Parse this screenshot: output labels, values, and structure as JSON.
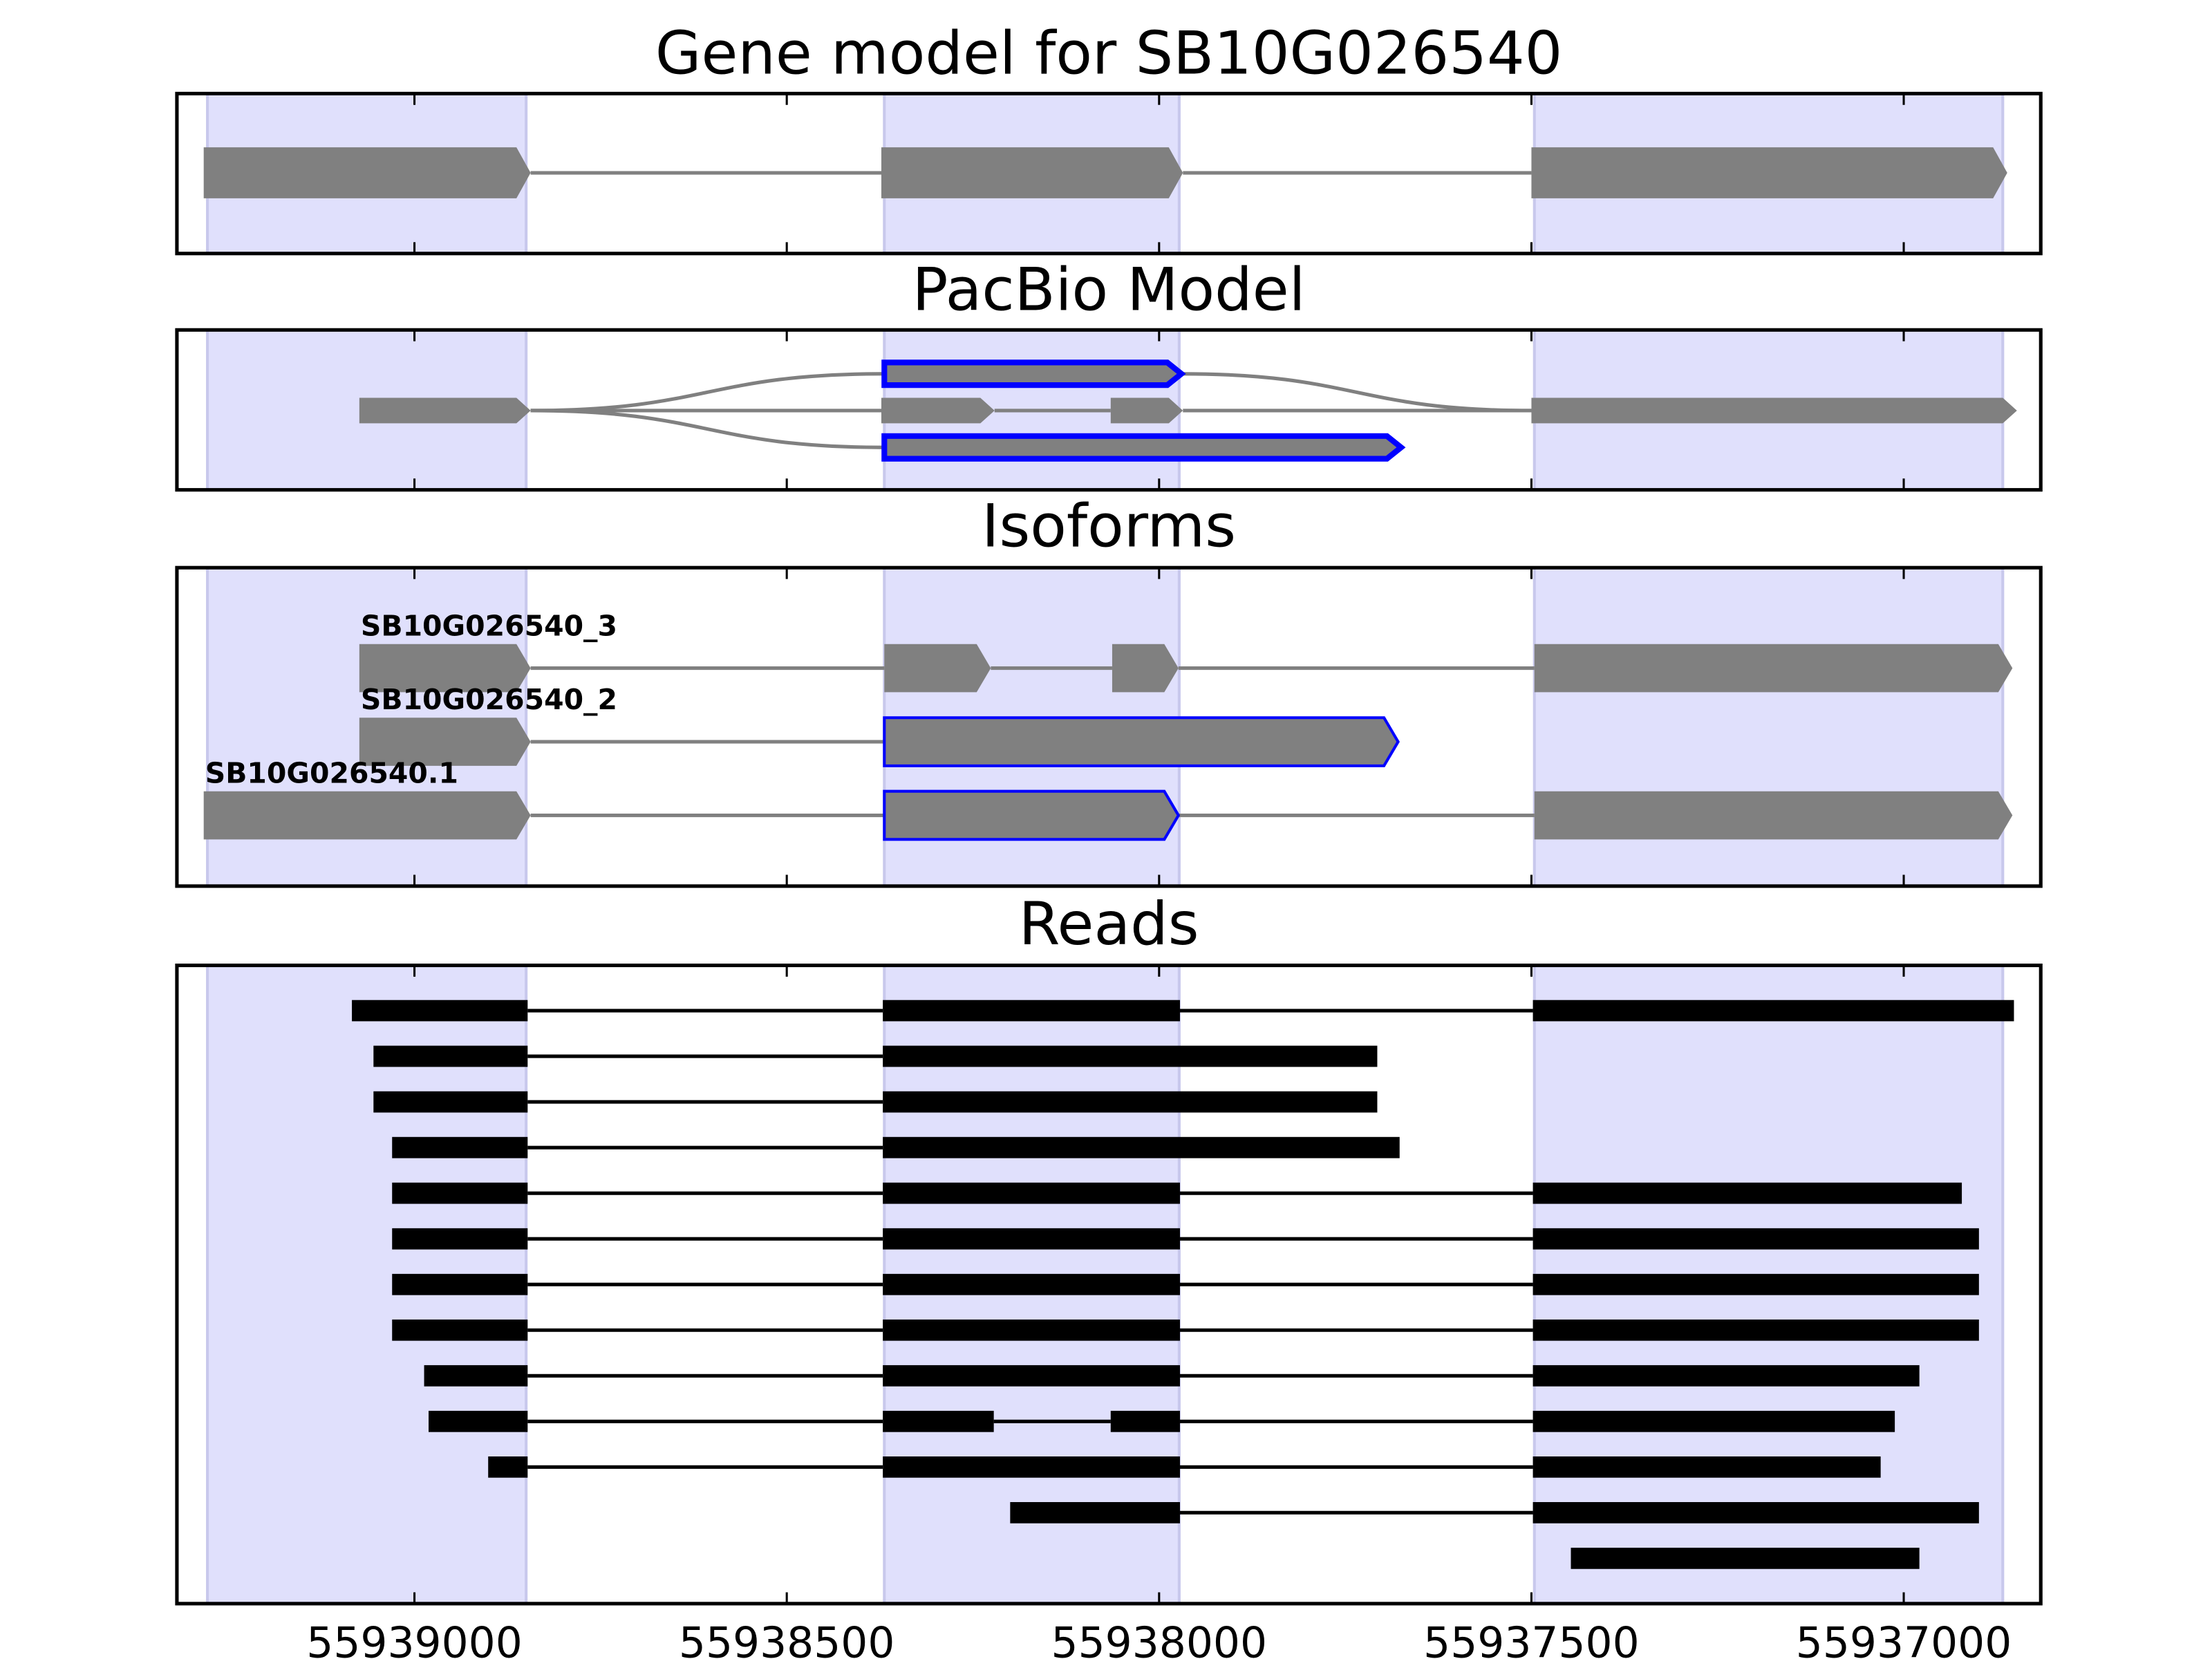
{
  "chart_data": {
    "type": "gene-tracks",
    "xlim": [
      55939319,
      55936816
    ],
    "xticks": [
      55939000,
      55938500,
      55938000,
      55937500,
      55937000
    ],
    "regions": [
      [
        55939278,
        55938850
      ],
      [
        55938369,
        55937973
      ],
      [
        55937496,
        55936867
      ]
    ],
    "panels": [
      {
        "title": "Gene model for SB10G026540",
        "style": "model",
        "rows": [
          {
            "exons": [
              [
                55939283,
                55938844
              ],
              [
                55938373,
                55937968
              ],
              [
                55937500,
                55936861
              ]
            ]
          }
        ]
      },
      {
        "title": "PacBio Model",
        "style": "model",
        "rows": [
          {
            "exons": [
              [
                55938369,
                55937970
              ]
            ],
            "outlined": [
              0
            ]
          },
          {
            "exons": [
              [
                55939074,
                55938844
              ],
              [
                55938373,
                55938221
              ],
              [
                55938065,
                55937968
              ],
              [
                55937500,
                55936848
              ]
            ]
          },
          {
            "exons": [
              [
                55938369,
                55937675
              ]
            ],
            "outlined": [
              0
            ]
          }
        ],
        "links": [
          [
            [
              1,
              0
            ],
            [
              0,
              0
            ]
          ],
          [
            [
              0,
              0
            ],
            [
              1,
              3
            ]
          ],
          [
            [
              1,
              0
            ],
            [
              2,
              0
            ]
          ]
        ]
      },
      {
        "title": "Isoforms",
        "style": "model",
        "rows": [
          {
            "name": "SB10G026540_3",
            "exons": [
              [
                55939074,
                55938844
              ],
              [
                55938369,
                55938226
              ],
              [
                55938063,
                55937974
              ],
              [
                55937496,
                55936854
              ]
            ]
          },
          {
            "name": "SB10G026540_2",
            "exons": [
              [
                55939074,
                55938844
              ],
              [
                55938369,
                55937679
              ]
            ],
            "outlined": [
              1
            ]
          },
          {
            "name": "SB10G026540.1",
            "exons": [
              [
                55939283,
                55938844
              ],
              [
                55938369,
                55937974
              ],
              [
                55937496,
                55936854
              ]
            ],
            "outlined": [
              1
            ]
          }
        ]
      },
      {
        "title": "Reads",
        "style": "reads",
        "rows": [
          {
            "exons": [
              [
                55939084,
                55938848
              ],
              [
                55938371,
                55937972
              ],
              [
                55937498,
                55936852
              ]
            ]
          },
          {
            "exons": [
              [
                55939055,
                55938848
              ],
              [
                55938371,
                55937707
              ]
            ]
          },
          {
            "exons": [
              [
                55939055,
                55938848
              ],
              [
                55938371,
                55937707
              ]
            ]
          },
          {
            "exons": [
              [
                55939030,
                55938848
              ],
              [
                55938371,
                55937677
              ]
            ]
          },
          {
            "exons": [
              [
                55939030,
                55938848
              ],
              [
                55938371,
                55937972
              ],
              [
                55937498,
                55936922
              ]
            ]
          },
          {
            "exons": [
              [
                55939030,
                55938848
              ],
              [
                55938371,
                55937972
              ],
              [
                55937498,
                55936899
              ]
            ]
          },
          {
            "exons": [
              [
                55939030,
                55938848
              ],
              [
                55938371,
                55937972
              ],
              [
                55937498,
                55936899
              ]
            ]
          },
          {
            "exons": [
              [
                55939030,
                55938848
              ],
              [
                55938371,
                55937972
              ],
              [
                55937498,
                55936899
              ]
            ]
          },
          {
            "exons": [
              [
                55938987,
                55938848
              ],
              [
                55938371,
                55937972
              ],
              [
                55937498,
                55936979
              ]
            ]
          },
          {
            "exons": [
              [
                55938981,
                55938848
              ],
              [
                55938371,
                55938222
              ],
              [
                55938065,
                55937972
              ],
              [
                55937498,
                55937012
              ]
            ]
          },
          {
            "exons": [
              [
                55938901,
                55938848
              ],
              [
                55938371,
                55937972
              ],
              [
                55937498,
                55937031
              ]
            ]
          },
          {
            "exons": [
              [
                55938200,
                55937972
              ],
              [
                55937498,
                55936899
              ]
            ]
          },
          {
            "exons": [
              [
                55937447,
                55936979
              ]
            ]
          }
        ]
      }
    ]
  }
}
